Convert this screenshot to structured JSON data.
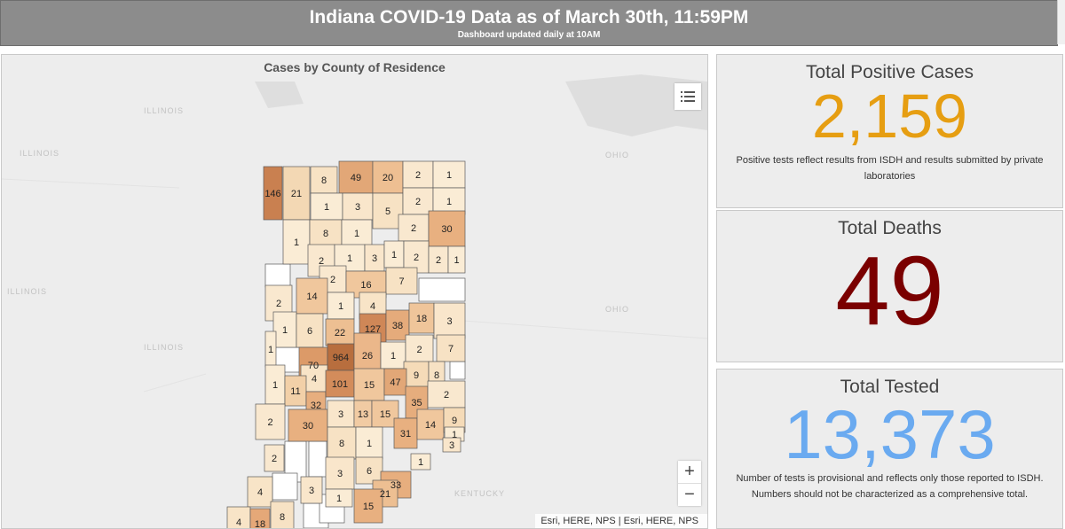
{
  "header": {
    "title": "Indiana COVID-19 Data as of March 30th, 11:59PM",
    "subtitle": "Dashboard updated daily at 10AM"
  },
  "map": {
    "title": "Cases by County of Residence",
    "attribution": "Esri, HERE, NPS | Esri, HERE, NPS",
    "zoom_in": "+",
    "zoom_out": "−",
    "basemap_labels": [
      "ILLINOIS",
      "ILLINOIS",
      "ILLINOIS",
      "ILLINOIS",
      "OHIO",
      "OHIO",
      "KENTUCKY"
    ],
    "counties": [
      {
        "label": "146",
        "fill": "#c98050"
      },
      {
        "label": "21",
        "fill": "#f3d8b4"
      },
      {
        "label": "8",
        "fill": "#f7e2c4"
      },
      {
        "label": "49",
        "fill": "#e2a777"
      },
      {
        "label": "20",
        "fill": "#eebf92"
      },
      {
        "label": "2",
        "fill": "#f9e8cf"
      },
      {
        "label": "1",
        "fill": "#faecd5"
      },
      {
        "label": "1",
        "fill": "#faecd5"
      },
      {
        "label": "3",
        "fill": "#f9e6cb"
      },
      {
        "label": "5",
        "fill": "#f7e2c4"
      },
      {
        "label": "2",
        "fill": "#f9e8cf"
      },
      {
        "label": "1",
        "fill": "#faecd5"
      },
      {
        "label": "1",
        "fill": "#faecd5"
      },
      {
        "label": "8",
        "fill": "#f7e2c4"
      },
      {
        "label": "1",
        "fill": "#faecd5"
      },
      {
        "label": "2",
        "fill": "#f9e8cf"
      },
      {
        "label": "30",
        "fill": "#e8b080"
      },
      {
        "label": "2",
        "fill": "#f9e8cf"
      },
      {
        "label": "1",
        "fill": "#faecd5"
      },
      {
        "label": "3",
        "fill": "#f9e6cb"
      },
      {
        "label": "1",
        "fill": "#faecd5"
      },
      {
        "label": "2",
        "fill": "#f9e8cf"
      },
      {
        "label": "2",
        "fill": "#f9e8cf"
      },
      {
        "label": "1",
        "fill": "#faecd5"
      },
      {
        "label": "2",
        "fill": "#f9e8cf"
      },
      {
        "label": "16",
        "fill": "#f0c79d"
      },
      {
        "label": "7",
        "fill": "#f7e2c4"
      },
      {
        "label": "2",
        "fill": "#f9e8cf"
      },
      {
        "label": "14",
        "fill": "#f0c79d"
      },
      {
        "label": "1",
        "fill": "#faecd5"
      },
      {
        "label": "4",
        "fill": "#f8e4c7"
      },
      {
        "label": "1",
        "fill": "#faecd5"
      },
      {
        "label": "6",
        "fill": "#f7e2c4"
      },
      {
        "label": "22",
        "fill": "#edbf92"
      },
      {
        "label": "127",
        "fill": "#cf8757"
      },
      {
        "label": "38",
        "fill": "#e5ab7b"
      },
      {
        "label": "18",
        "fill": "#efc59a"
      },
      {
        "label": "3",
        "fill": "#f9e6cb"
      },
      {
        "label": "1",
        "fill": "#faecd5"
      },
      {
        "label": "70",
        "fill": "#dc9a68"
      },
      {
        "label": "964",
        "fill": "#b86e3e"
      },
      {
        "label": "26",
        "fill": "#ebb78a"
      },
      {
        "label": "1",
        "fill": "#faecd5"
      },
      {
        "label": "2",
        "fill": "#f9e8cf"
      },
      {
        "label": "7",
        "fill": "#f7e2c4"
      },
      {
        "label": "4",
        "fill": "#f8e4c7"
      },
      {
        "label": "9",
        "fill": "#f5dbb8"
      },
      {
        "label": "8",
        "fill": "#f7e2c4"
      },
      {
        "label": "1",
        "fill": "#faecd5"
      },
      {
        "label": "11",
        "fill": "#f2d0a8"
      },
      {
        "label": "32",
        "fill": "#e7ae7e"
      },
      {
        "label": "101",
        "fill": "#d38c5b"
      },
      {
        "label": "15",
        "fill": "#f0c79d"
      },
      {
        "label": "47",
        "fill": "#e2a777"
      },
      {
        "label": "35",
        "fill": "#e6ad7d"
      },
      {
        "label": "2",
        "fill": "#f9e8cf"
      },
      {
        "label": "2",
        "fill": "#f9e8cf"
      },
      {
        "label": "30",
        "fill": "#e8b080"
      },
      {
        "label": "3",
        "fill": "#f9e6cb"
      },
      {
        "label": "13",
        "fill": "#f1cba3"
      },
      {
        "label": "15",
        "fill": "#f0c79d"
      },
      {
        "label": "31",
        "fill": "#e8b080"
      },
      {
        "label": "14",
        "fill": "#f0c79d"
      },
      {
        "label": "9",
        "fill": "#f5dbb8"
      },
      {
        "label": "8",
        "fill": "#f7e2c4"
      },
      {
        "label": "1",
        "fill": "#faecd5"
      },
      {
        "label": "1",
        "fill": "#faecd5"
      },
      {
        "label": "3",
        "fill": "#f9e6cb"
      },
      {
        "label": "2",
        "fill": "#f9e8cf"
      },
      {
        "label": "3",
        "fill": "#f9e6cb"
      },
      {
        "label": "6",
        "fill": "#f7e2c4"
      },
      {
        "label": "1",
        "fill": "#faecd5"
      },
      {
        "label": "33",
        "fill": "#e7ae7e"
      },
      {
        "label": "4",
        "fill": "#f8e4c7"
      },
      {
        "label": "3",
        "fill": "#f9e6cb"
      },
      {
        "label": "1",
        "fill": "#faecd5"
      },
      {
        "label": "21",
        "fill": "#edbf92"
      },
      {
        "label": "15",
        "fill": "#e8b080"
      },
      {
        "label": "8",
        "fill": "#f7e2c4"
      },
      {
        "label": "4",
        "fill": "#f8e4c7"
      },
      {
        "label": "18",
        "fill": "#e5a878"
      }
    ]
  },
  "cards": [
    {
      "title": "Total Positive Cases",
      "value": "2,159",
      "color": "#e69e12",
      "note": "Positive tests reflect results from ISDH and results submitted by private laboratories"
    },
    {
      "title": "Total Deaths",
      "value": "49",
      "color": "#7a0000",
      "note": ""
    },
    {
      "title": "Total Tested",
      "value": "13,373",
      "color": "#6aaaf0",
      "note": "Number of tests is provisional and reflects only those reported to ISDH. Numbers should not be characterized as a comprehensive total."
    }
  ],
  "icons": {
    "layer_list": "list-icon"
  }
}
